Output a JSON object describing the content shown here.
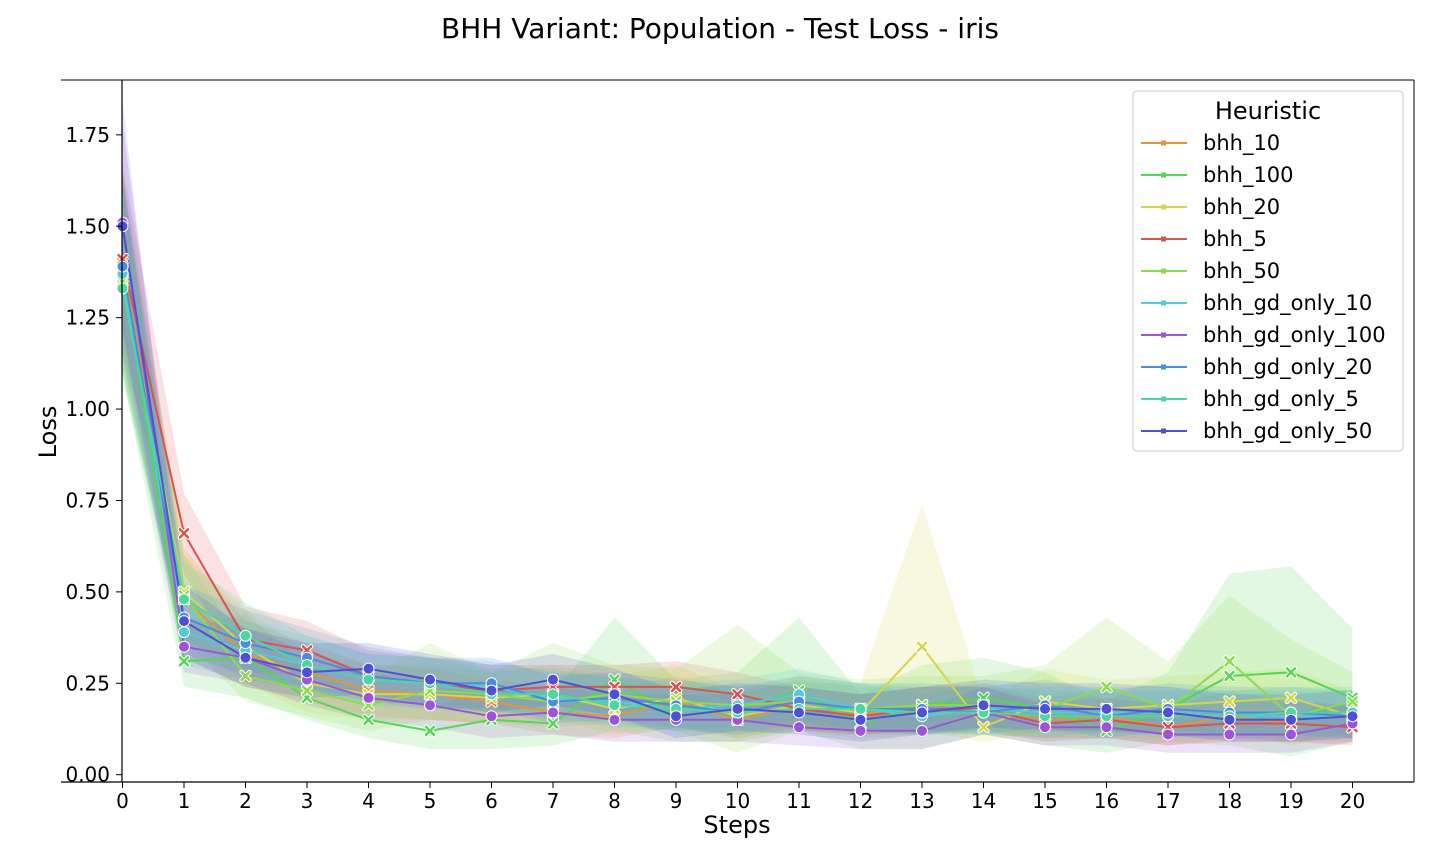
{
  "chart_data": {
    "type": "line",
    "title": "BHH Variant: Population - Test Loss - iris",
    "xlabel": "Steps",
    "ylabel": "Loss",
    "xlim": [
      -1,
      21
    ],
    "ylim": [
      -0.02,
      1.9
    ],
    "x_ticks": [
      0,
      1,
      2,
      3,
      4,
      5,
      6,
      7,
      8,
      9,
      10,
      11,
      12,
      13,
      14,
      15,
      16,
      17,
      18,
      19,
      20
    ],
    "y_ticks": [
      "0.00",
      "0.25",
      "0.50",
      "0.75",
      "1.00",
      "1.25",
      "1.50",
      "1.75"
    ],
    "grid": false,
    "legend": {
      "title": "Heuristic",
      "placement": "top-right"
    },
    "x": [
      0,
      1,
      2,
      3,
      4,
      5,
      6,
      7,
      8,
      9,
      10,
      11,
      12,
      13,
      14,
      15,
      16,
      17,
      18,
      19,
      20
    ],
    "series": [
      {
        "name": "bhh_10",
        "color": "#e3953c",
        "marker": "x",
        "values": [
          1.4,
          0.48,
          0.33,
          0.28,
          0.23,
          0.22,
          0.2,
          0.17,
          0.16,
          0.2,
          0.15,
          0.19,
          0.17,
          0.17,
          0.18,
          0.15,
          0.16,
          0.13,
          0.16,
          0.14,
          0.13
        ],
        "lower": [
          1.15,
          0.32,
          0.24,
          0.2,
          0.16,
          0.15,
          0.14,
          0.11,
          0.1,
          0.13,
          0.1,
          0.13,
          0.11,
          0.11,
          0.12,
          0.1,
          0.1,
          0.08,
          0.1,
          0.09,
          0.09
        ],
        "upper": [
          1.65,
          0.62,
          0.42,
          0.36,
          0.3,
          0.29,
          0.26,
          0.24,
          0.23,
          0.27,
          0.22,
          0.26,
          0.24,
          0.24,
          0.25,
          0.21,
          0.23,
          0.19,
          0.23,
          0.2,
          0.19
        ]
      },
      {
        "name": "bhh_100",
        "color": "#55d655",
        "marker": "x",
        "values": [
          1.38,
          0.31,
          0.32,
          0.21,
          0.15,
          0.12,
          0.15,
          0.14,
          0.26,
          0.16,
          0.18,
          0.23,
          0.14,
          0.19,
          0.21,
          0.18,
          0.12,
          0.18,
          0.27,
          0.28,
          0.21
        ],
        "lower": [
          1.1,
          0.24,
          0.21,
          0.15,
          0.1,
          0.07,
          0.07,
          0.08,
          0.12,
          0.09,
          0.09,
          0.12,
          0.07,
          0.07,
          0.11,
          0.08,
          0.06,
          0.09,
          0.08,
          0.05,
          0.09
        ],
        "upper": [
          1.65,
          0.4,
          0.44,
          0.3,
          0.22,
          0.18,
          0.24,
          0.22,
          0.43,
          0.26,
          0.28,
          0.43,
          0.22,
          0.3,
          0.32,
          0.28,
          0.2,
          0.28,
          0.55,
          0.57,
          0.4
        ]
      },
      {
        "name": "bhh_20",
        "color": "#d4d64a",
        "marker": "x",
        "values": [
          1.36,
          0.5,
          0.35,
          0.25,
          0.22,
          0.22,
          0.21,
          0.22,
          0.18,
          0.21,
          0.16,
          0.19,
          0.17,
          0.35,
          0.13,
          0.2,
          0.18,
          0.19,
          0.2,
          0.21,
          0.16
        ],
        "lower": [
          1.1,
          0.38,
          0.25,
          0.17,
          0.15,
          0.15,
          0.14,
          0.15,
          0.11,
          0.13,
          0.1,
          0.12,
          0.11,
          0.12,
          0.09,
          0.12,
          0.11,
          0.12,
          0.13,
          0.14,
          0.1
        ],
        "upper": [
          1.62,
          0.6,
          0.45,
          0.34,
          0.3,
          0.3,
          0.28,
          0.3,
          0.27,
          0.3,
          0.23,
          0.27,
          0.25,
          0.74,
          0.2,
          0.29,
          0.26,
          0.27,
          0.28,
          0.29,
          0.23
        ]
      },
      {
        "name": "bhh_5",
        "color": "#d9534f",
        "marker": "x",
        "values": [
          1.41,
          0.66,
          0.37,
          0.34,
          0.27,
          0.25,
          0.23,
          0.24,
          0.24,
          0.24,
          0.22,
          0.18,
          0.16,
          0.18,
          0.18,
          0.14,
          0.15,
          0.13,
          0.14,
          0.14,
          0.13
        ],
        "lower": [
          1.15,
          0.55,
          0.28,
          0.27,
          0.2,
          0.19,
          0.17,
          0.17,
          0.17,
          0.18,
          0.16,
          0.12,
          0.11,
          0.12,
          0.12,
          0.09,
          0.1,
          0.08,
          0.09,
          0.09,
          0.08
        ],
        "upper": [
          1.67,
          0.77,
          0.46,
          0.42,
          0.34,
          0.32,
          0.3,
          0.3,
          0.3,
          0.31,
          0.28,
          0.24,
          0.22,
          0.24,
          0.24,
          0.2,
          0.21,
          0.19,
          0.2,
          0.2,
          0.19
        ]
      },
      {
        "name": "bhh_50",
        "color": "#8cdb4a",
        "marker": "x",
        "values": [
          1.35,
          0.49,
          0.27,
          0.23,
          0.19,
          0.23,
          0.22,
          0.2,
          0.22,
          0.2,
          0.19,
          0.2,
          0.18,
          0.19,
          0.19,
          0.18,
          0.24,
          0.18,
          0.31,
          0.16,
          0.2
        ],
        "lower": [
          1.1,
          0.37,
          0.2,
          0.16,
          0.12,
          0.15,
          0.14,
          0.13,
          0.14,
          0.12,
          0.06,
          0.12,
          0.1,
          0.11,
          0.11,
          0.1,
          0.12,
          0.1,
          0.12,
          0.08,
          0.12
        ],
        "upper": [
          1.6,
          0.6,
          0.35,
          0.3,
          0.27,
          0.36,
          0.28,
          0.36,
          0.3,
          0.29,
          0.41,
          0.28,
          0.26,
          0.27,
          0.27,
          0.3,
          0.43,
          0.31,
          0.49,
          0.37,
          0.28
        ]
      },
      {
        "name": "bhh_gd_only_10",
        "color": "#55c9d6",
        "marker": "o",
        "values": [
          1.37,
          0.39,
          0.34,
          0.3,
          0.26,
          0.25,
          0.24,
          0.21,
          0.2,
          0.18,
          0.19,
          0.22,
          0.18,
          0.16,
          0.18,
          0.17,
          0.17,
          0.17,
          0.16,
          0.16,
          0.16
        ],
        "lower": [
          1.12,
          0.3,
          0.26,
          0.23,
          0.2,
          0.19,
          0.18,
          0.15,
          0.14,
          0.12,
          0.13,
          0.15,
          0.12,
          0.11,
          0.12,
          0.11,
          0.11,
          0.11,
          0.1,
          0.1,
          0.1
        ],
        "upper": [
          1.62,
          0.48,
          0.42,
          0.38,
          0.33,
          0.32,
          0.31,
          0.28,
          0.27,
          0.25,
          0.26,
          0.29,
          0.25,
          0.22,
          0.25,
          0.24,
          0.24,
          0.24,
          0.23,
          0.23,
          0.23
        ]
      },
      {
        "name": "bhh_gd_only_100",
        "color": "#9d55d6",
        "marker": "o",
        "values": [
          1.51,
          0.35,
          0.32,
          0.26,
          0.21,
          0.19,
          0.16,
          0.17,
          0.15,
          0.15,
          0.15,
          0.13,
          0.12,
          0.12,
          0.17,
          0.13,
          0.13,
          0.11,
          0.11,
          0.11,
          0.14
        ],
        "lower": [
          1.2,
          0.28,
          0.25,
          0.19,
          0.15,
          0.13,
          0.1,
          0.11,
          0.09,
          0.09,
          0.09,
          0.08,
          0.07,
          0.07,
          0.11,
          0.08,
          0.08,
          0.06,
          0.06,
          0.06,
          0.09
        ],
        "upper": [
          1.84,
          0.43,
          0.4,
          0.34,
          0.28,
          0.26,
          0.23,
          0.24,
          0.22,
          0.22,
          0.22,
          0.19,
          0.18,
          0.18,
          0.24,
          0.19,
          0.19,
          0.17,
          0.17,
          0.17,
          0.2
        ]
      },
      {
        "name": "bhh_gd_only_20",
        "color": "#4a8de0",
        "marker": "o",
        "values": [
          1.39,
          0.43,
          0.36,
          0.32,
          0.27,
          0.25,
          0.25,
          0.2,
          0.21,
          0.19,
          0.17,
          0.2,
          0.18,
          0.18,
          0.17,
          0.19,
          0.16,
          0.18,
          0.17,
          0.17,
          0.16
        ],
        "lower": [
          1.14,
          0.33,
          0.27,
          0.24,
          0.2,
          0.18,
          0.18,
          0.14,
          0.15,
          0.13,
          0.11,
          0.14,
          0.12,
          0.12,
          0.11,
          0.13,
          0.1,
          0.12,
          0.11,
          0.11,
          0.1
        ],
        "upper": [
          1.64,
          0.52,
          0.45,
          0.4,
          0.35,
          0.32,
          0.32,
          0.27,
          0.28,
          0.26,
          0.24,
          0.27,
          0.25,
          0.25,
          0.24,
          0.26,
          0.23,
          0.25,
          0.24,
          0.24,
          0.23
        ]
      },
      {
        "name": "bhh_gd_only_5",
        "color": "#4fd6a0",
        "marker": "o",
        "values": [
          1.33,
          0.48,
          0.38,
          0.3,
          0.26,
          0.25,
          0.22,
          0.22,
          0.19,
          0.18,
          0.17,
          0.18,
          0.18,
          0.17,
          0.17,
          0.16,
          0.16,
          0.16,
          0.16,
          0.17,
          0.17
        ],
        "lower": [
          1.08,
          0.37,
          0.29,
          0.23,
          0.19,
          0.18,
          0.16,
          0.16,
          0.13,
          0.12,
          0.11,
          0.12,
          0.12,
          0.11,
          0.11,
          0.1,
          0.1,
          0.1,
          0.1,
          0.11,
          0.11
        ],
        "upper": [
          1.58,
          0.58,
          0.47,
          0.38,
          0.33,
          0.32,
          0.29,
          0.29,
          0.26,
          0.25,
          0.24,
          0.25,
          0.25,
          0.24,
          0.24,
          0.23,
          0.23,
          0.23,
          0.23,
          0.24,
          0.24
        ]
      },
      {
        "name": "bhh_gd_only_50",
        "color": "#5050d6",
        "marker": "o",
        "values": [
          1.5,
          0.42,
          0.32,
          0.28,
          0.29,
          0.26,
          0.23,
          0.26,
          0.22,
          0.16,
          0.18,
          0.17,
          0.15,
          0.17,
          0.19,
          0.18,
          0.18,
          0.17,
          0.15,
          0.15,
          0.16
        ],
        "lower": [
          1.22,
          0.32,
          0.24,
          0.21,
          0.22,
          0.19,
          0.17,
          0.19,
          0.16,
          0.1,
          0.12,
          0.11,
          0.09,
          0.11,
          0.13,
          0.12,
          0.12,
          0.11,
          0.09,
          0.09,
          0.1
        ],
        "upper": [
          1.78,
          0.52,
          0.4,
          0.36,
          0.36,
          0.33,
          0.3,
          0.33,
          0.29,
          0.23,
          0.25,
          0.24,
          0.22,
          0.24,
          0.26,
          0.25,
          0.25,
          0.24,
          0.22,
          0.22,
          0.23
        ]
      }
    ]
  }
}
